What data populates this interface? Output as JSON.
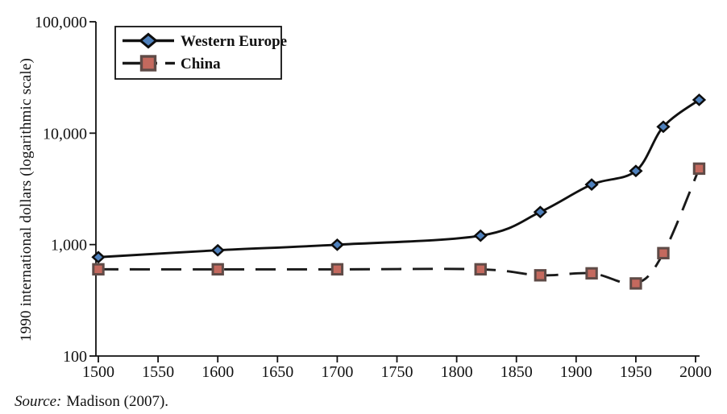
{
  "figure": {
    "ylabel": "1990 international dollars (logarithmic scale)",
    "source_prefix": "Source:",
    "source_text": "Madison (2007)."
  },
  "chart_data": {
    "type": "line",
    "x": [
      1500,
      1600,
      1700,
      1820,
      1870,
      1913,
      1950,
      1973,
      2003
    ],
    "series": [
      {
        "name": "Western Europe",
        "values": [
          771,
          889,
          997,
          1202,
          1960,
          3457,
          4578,
          11417,
          19912
        ],
        "line_style": "solid",
        "line_color": "#111111",
        "marker": "diamond",
        "marker_color": "#4f81bd",
        "marker_border": "#0d0d0d"
      },
      {
        "name": "China",
        "values": [
          600,
          600,
          600,
          600,
          530,
          552,
          448,
          838,
          4803
        ],
        "line_style": "dashed",
        "line_color": "#1a1a1a",
        "marker": "square",
        "marker_color": "#c4695e",
        "marker_border": "#5f4b47"
      }
    ],
    "xlim": [
      1500,
      2000
    ],
    "ylim": [
      100,
      100000
    ],
    "yscale": "log",
    "grid": false,
    "legend_position": "top-left",
    "x_ticks": {
      "values": [
        1500,
        1550,
        1600,
        1650,
        1700,
        1750,
        1800,
        1850,
        1900,
        1950,
        2000
      ],
      "labels": [
        "1500",
        "1550",
        "1600",
        "1650",
        "1700",
        "1750",
        "1800",
        "1850",
        "1900",
        "1950",
        "2000"
      ]
    },
    "y_ticks": {
      "values": [
        100,
        1000,
        10000,
        100000
      ],
      "labels": [
        "100",
        "1,000",
        "10,000",
        "100,000"
      ]
    },
    "axis_color": "#111111",
    "title": "",
    "xlabel": ""
  }
}
